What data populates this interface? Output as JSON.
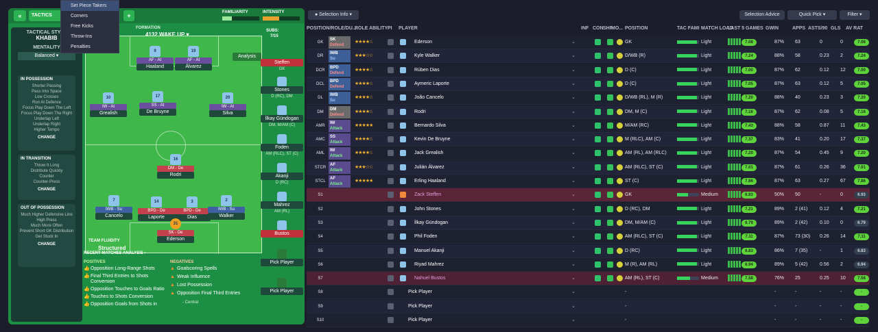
{
  "tactics": {
    "title": "TACTICS",
    "style_label": "TACTICAL STYLE",
    "style": "KHABIB",
    "mentality_label": "MENTALITY",
    "mentality": "Balanced",
    "possession": {
      "title": "IN POSSESSION",
      "items": [
        "Shorter Passing",
        "Pass Into Space",
        "Low Crosses",
        "Run At Defence",
        "Focus Play Down The Left",
        "Focus Play Down The Right",
        "Underlap Left",
        "Underlap Right",
        "Higher Tempo"
      ],
      "change": "CHANGE"
    },
    "transition": {
      "title": "IN TRANSITION",
      "items": [
        "Throw It Long",
        "Distribute Quickly",
        "Counter",
        "Counter-Press"
      ],
      "change": "CHANGE"
    },
    "out": {
      "title": "OUT OF POSSESSION",
      "items": [
        "Much Higher Defensive Line",
        "High Press",
        "Much More Often",
        "Prevent Short GK Distribution",
        "Get Stuck In"
      ],
      "change": "CHANGE"
    },
    "familiarity": "FAMILIARITY",
    "intensity": "INTENSITY",
    "formation_label": "FORMATION",
    "formation": "4132 WAKE UP",
    "analysis": "Analysis",
    "subs_label": "SUBS:",
    "subs_count": "7/15",
    "fluidity_label": "TEAM FLUIDITY",
    "fluidity": "Structured",
    "recent": "RECENT MATCHES ANALYSIS",
    "positives_label": "POSITIVES",
    "positives": [
      "Opposition Long-Range Shots",
      "Final Third Entries to Shots Conversion",
      "Opposition Touches to Goals Ratio",
      "Touches to Shots Conversion",
      "Opposition Goals from Shots in"
    ],
    "negatives_label": "NEGATIVES",
    "negatives": [
      "Goalscoring Spells",
      "Weak Influence",
      "Lost Possession",
      "Opposition Final Third Entries"
    ],
    "neg_sub": "- Central"
  },
  "menu": [
    "Set Piece Takers",
    "Corners",
    "Free Kicks",
    "Throw-Ins",
    "Penalties"
  ],
  "pitch_players": [
    {
      "num": "9",
      "role": "AF - At",
      "name": "Haaland"
    },
    {
      "num": "19",
      "role": "AF - At",
      "name": "Álvarez"
    },
    {
      "num": "10",
      "role": "IW - At",
      "name": "Grealish"
    },
    {
      "num": "17",
      "role": "SS - At",
      "name": "De Bruyne"
    },
    {
      "num": "20",
      "role": "IW - At",
      "name": "Silva"
    },
    {
      "num": "16",
      "role": "DM - De",
      "name": "Rodri"
    },
    {
      "num": "7",
      "role": "IWB - Su",
      "name": "Cancelo"
    },
    {
      "num": "14",
      "role": "BPD - De",
      "name": "Laporte"
    },
    {
      "num": "3",
      "role": "BPD - De",
      "name": "Dias"
    },
    {
      "num": "2",
      "role": "IWB - Su",
      "name": "Walker"
    },
    {
      "num": "31",
      "role": "SK - De",
      "name": "Ederson"
    }
  ],
  "subs": [
    {
      "name": "Steffen",
      "pos": "GK"
    },
    {
      "name": "Stones",
      "pos": "D (RC), DM"
    },
    {
      "name": "İlkay Gündogan",
      "pos": "DM, M/AM (C)"
    },
    {
      "name": "Foden",
      "pos": "AM (RLC), ST (C)"
    },
    {
      "name": "Akanji",
      "pos": "D (RC)"
    },
    {
      "name": "Mahrez",
      "pos": "AM (RL)"
    },
    {
      "name": "Bustos",
      "pos": ""
    },
    {
      "name": "Pick Player",
      "pos": ""
    },
    {
      "name": "Pick Player",
      "pos": ""
    }
  ],
  "toolbar": {
    "selection_info": "Selection Info",
    "selection_advice": "Selection Advice",
    "quick_pick": "Quick Pick",
    "filter": "Filter"
  },
  "headers": [
    "POSITION/ROLE/DU...",
    "ROLE ABILITY",
    "PI",
    "PLAYER",
    "INF",
    "CON",
    "SHP",
    "MO...",
    "POSITION",
    "TAC FAMI",
    "MATCH LOAD",
    "LAST 5 GAMES",
    "GWIN",
    "APPS",
    "ASTS/90",
    "GLS",
    "AV RAT"
  ],
  "rows": [
    {
      "pos": "GK",
      "role": "SK",
      "duty": "Defend",
      "stars": 4,
      "name": "Ederson",
      "position": "GK",
      "load": "Light",
      "gwin": "87%",
      "apps": "63",
      "asts": "0",
      "gls": "0",
      "rat": "7.08",
      "fam": 0.9
    },
    {
      "pos": "DR",
      "role": "IWB",
      "duty": "Su",
      "stars": 3,
      "name": "Kyle Walker",
      "position": "D/WB (R)",
      "load": "Light",
      "gwin": "88%",
      "apps": "58",
      "asts": "0.23",
      "gls": "2",
      "rat": "7.24",
      "fam": 0.9
    },
    {
      "pos": "DCR",
      "role": "BPD",
      "duty": "Defend",
      "stars": 4,
      "name": "Rúben Dias",
      "position": "D (C)",
      "load": "Light",
      "gwin": "87%",
      "apps": "62",
      "asts": "0.12",
      "gls": "12",
      "rat": "7.00",
      "fam": 0.9
    },
    {
      "pos": "DCL",
      "role": "BPD",
      "duty": "Defend",
      "stars": 4,
      "name": "Aymeric Laporte",
      "position": "D (C)",
      "load": "Light",
      "gwin": "87%",
      "apps": "63",
      "asts": "0.12",
      "gls": "5",
      "rat": "7.05",
      "fam": 0.9
    },
    {
      "pos": "DL",
      "role": "IWB",
      "duty": "Su",
      "stars": 4,
      "name": "João Cancelo",
      "position": "D/WB (RL), M (R)",
      "load": "Light",
      "gwin": "88%",
      "apps": "40",
      "asts": "0.23",
      "gls": "3",
      "rat": "7.20",
      "fam": 0.9
    },
    {
      "pos": "DM",
      "role": "DM",
      "duty": "Defend",
      "stars": 4,
      "name": "Rodri",
      "position": "DM, M (C)",
      "load": "Light",
      "gwin": "87%",
      "apps": "62",
      "asts": "0.08",
      "gls": "5",
      "rat": "7.16",
      "fam": 0.9
    },
    {
      "pos": "AMR",
      "role": "IW",
      "duty": "Attack",
      "stars": 5,
      "name": "Bernardo Silva",
      "position": "M/AM (RC)",
      "load": "Light",
      "gwin": "88%",
      "apps": "58",
      "asts": "0.87",
      "gls": "11",
      "rat": "7.43",
      "fam": 0.9
    },
    {
      "pos": "AMC",
      "role": "SS",
      "duty": "Attack",
      "stars": 4,
      "name": "Kevin De Bruyne",
      "position": "M (RLC), AM (C)",
      "load": "Light",
      "gwin": "83%",
      "apps": "41",
      "asts": "0.20",
      "gls": "17",
      "rat": "7.37",
      "fam": 0.9
    },
    {
      "pos": "AML",
      "role": "IW",
      "duty": "Attack",
      "stars": 4,
      "name": "Jack Grealish",
      "position": "AM (RL), AM (RLC)",
      "load": "Light",
      "gwin": "87%",
      "apps": "54",
      "asts": "0.45",
      "gls": "9",
      "rat": "7.20",
      "fam": 0.9
    },
    {
      "pos": "STCR",
      "role": "AF",
      "duty": "Attack",
      "stars": 3,
      "name": "Julián Álvarez",
      "position": "AM (RLC), ST (C)",
      "load": "Light",
      "gwin": "87%",
      "apps": "61",
      "asts": "0.26",
      "gls": "36",
      "rat": "7.01",
      "fam": 0.9
    },
    {
      "pos": "STCL",
      "role": "AF",
      "duty": "Attack",
      "stars": 5,
      "name": "Erling Haaland",
      "position": "ST (C)",
      "load": "Light",
      "gwin": "87%",
      "apps": "63",
      "asts": "0.27",
      "gls": "67",
      "rat": "7.86",
      "fam": 0.9
    },
    {
      "pos": "S1",
      "role": "",
      "duty": "",
      "stars": 0,
      "name": "Zack Steffen",
      "position": "GK",
      "load": "Medium",
      "gwin": "50%",
      "apps": "50",
      "asts": "-",
      "gls": "0",
      "rat": "6.93",
      "fam": 0.5
    },
    {
      "pos": "S2",
      "role": "",
      "duty": "",
      "stars": 0,
      "name": "John Stones",
      "position": "D (RC), DM",
      "load": "Light",
      "gwin": "89%",
      "apps": "2 (41)",
      "asts": "0.12",
      "gls": "4",
      "rat": "7.21",
      "fam": 0.9
    },
    {
      "pos": "S3",
      "role": "",
      "duty": "",
      "stars": 0,
      "name": "İlkay Gündogan",
      "position": "DM, M/AM (C)",
      "load": "Light",
      "gwin": "89%",
      "apps": "2 (42)",
      "asts": "0.10",
      "gls": "0",
      "rat": "6.79",
      "fam": 0.9
    },
    {
      "pos": "S4",
      "role": "",
      "duty": "",
      "stars": 0,
      "name": "Phil Foden",
      "position": "AM (RLC), ST (C)",
      "load": "Light",
      "gwin": "87%",
      "apps": "73 (30)",
      "asts": "0.26",
      "gls": "14",
      "rat": "7.11",
      "fam": 0.9
    },
    {
      "pos": "S5",
      "role": "",
      "duty": "",
      "stars": 0,
      "name": "Manuel Akanji",
      "position": "D (RC)",
      "load": "Light",
      "gwin": "86%",
      "apps": "7 (35)",
      "asts": "-",
      "gls": "1",
      "rat": "6.83",
      "fam": 0.9
    },
    {
      "pos": "S6",
      "role": "",
      "duty": "",
      "stars": 0,
      "name": "Riyad Mahrez",
      "position": "M (R), AM (RL)",
      "load": "Light",
      "gwin": "89%",
      "apps": "5 (42)",
      "asts": "0.56",
      "gls": "2",
      "rat": "6.94",
      "fam": 0.9
    },
    {
      "pos": "S7",
      "role": "",
      "duty": "",
      "stars": 0,
      "name": "Nahuel Bustos",
      "position": "AM (RL), ST (C)",
      "load": "Medium",
      "gwin": "76%",
      "apps": "25",
      "asts": "0.25",
      "gls": "10",
      "rat": "7.58",
      "fam": 0.6
    },
    {
      "pos": "S8",
      "role": "",
      "duty": "",
      "stars": 0,
      "name": "Pick Player",
      "position": "-",
      "load": "",
      "gwin": "-",
      "apps": "-",
      "asts": "-",
      "gls": "-",
      "rat": "-",
      "fam": 0
    },
    {
      "pos": "S9",
      "role": "",
      "duty": "",
      "stars": 0,
      "name": "Pick Player",
      "position": "-",
      "load": "",
      "gwin": "-",
      "apps": "-",
      "asts": "-",
      "gls": "-",
      "rat": "-",
      "fam": 0
    },
    {
      "pos": "S10",
      "role": "",
      "duty": "",
      "stars": 0,
      "name": "Pick Player",
      "position": "-",
      "load": "",
      "gwin": "-",
      "apps": "-",
      "asts": "-",
      "gls": "-",
      "rat": "-",
      "fam": 0
    }
  ]
}
